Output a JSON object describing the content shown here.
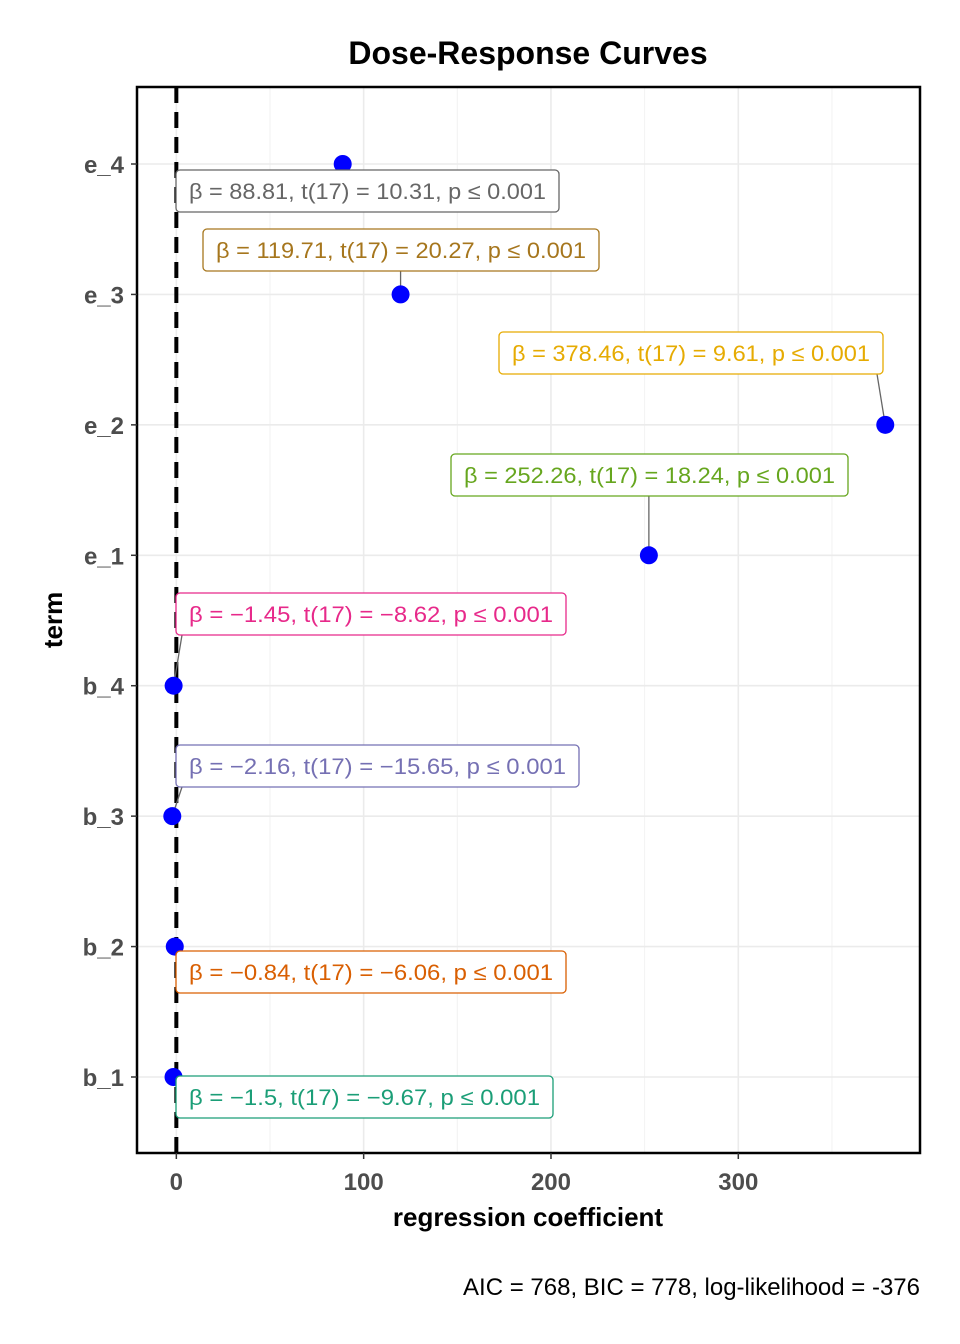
{
  "chart_data": {
    "type": "scatter",
    "title": "Dose-Response Curves",
    "xlabel": "regression coefficient",
    "ylabel": "term",
    "caption": "AIC = 768, BIC = 778, log-likelihood = -376",
    "xlim": [
      -21,
      397
    ],
    "x_ticks": [
      0,
      100,
      200,
      300
    ],
    "x_tick_labels": [
      "0",
      "100",
      "200",
      "300"
    ],
    "grid": true,
    "reference_line_x": 0,
    "point_color": "#0000ff",
    "categories": [
      "b_1",
      "b_2",
      "b_3",
      "b_4",
      "e_1",
      "e_2",
      "e_3",
      "e_4"
    ],
    "points": [
      {
        "term": "b_1",
        "estimate": -1.5,
        "label": "β = −1.5,  t(17) = −9.67,  p ≤ 0.001",
        "color": "#1b9e77"
      },
      {
        "term": "b_2",
        "estimate": -0.84,
        "label": "β = −0.84,  t(17) = −6.06,  p ≤ 0.001",
        "color": "#d95f02"
      },
      {
        "term": "b_3",
        "estimate": -2.16,
        "label": "β = −2.16,  t(17) = −15.65,  p ≤ 0.001",
        "color": "#7570b3"
      },
      {
        "term": "b_4",
        "estimate": -1.45,
        "label": "β = −1.45,  t(17) = −8.62,  p ≤ 0.001",
        "color": "#e7298a"
      },
      {
        "term": "e_1",
        "estimate": 252.26,
        "label": "β = 252.26,  t(17) = 18.24,  p ≤ 0.001",
        "color": "#66a61e"
      },
      {
        "term": "e_2",
        "estimate": 378.46,
        "label": "β = 378.46,  t(17) = 9.61,  p ≤ 0.001",
        "color": "#e6ab02"
      },
      {
        "term": "e_3",
        "estimate": 119.71,
        "label": "β = 119.71,  t(17) = 20.27,  p ≤ 0.001",
        "color": "#a6761d"
      },
      {
        "term": "e_4",
        "estimate": 88.81,
        "label": "β = 88.81,  t(17) = 10.31,  p ≤ 0.001",
        "color": "#666666"
      }
    ]
  }
}
